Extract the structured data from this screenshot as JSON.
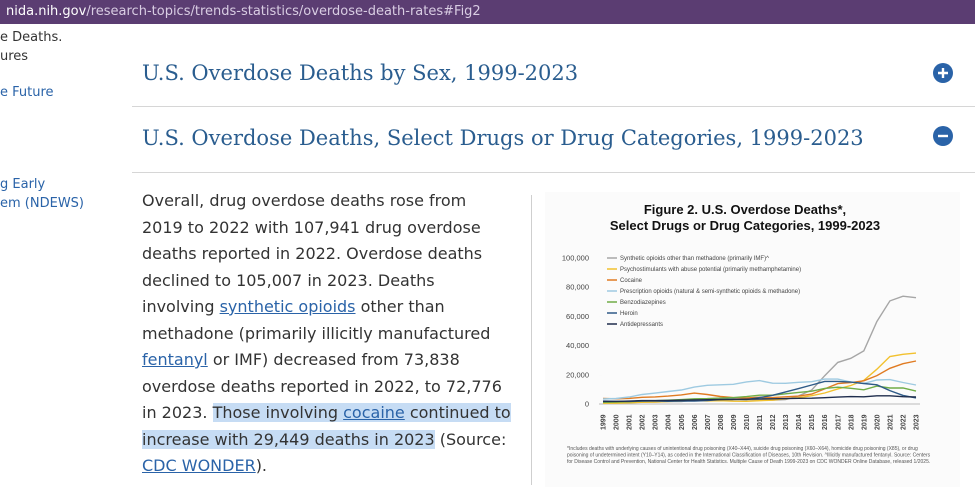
{
  "url": {
    "domain": "nida.nih.gov",
    "path": "/research-topics/trends-statistics/overdose-death-rates#Fig2"
  },
  "sidebar": [
    "e Deaths.",
    "ures",
    "e Future",
    "g Early",
    "em (NDEWS)"
  ],
  "accordion": [
    "U.S. Overdose Deaths by Sex, 1999-2023",
    "U.S. Overdose Deaths,  Select Drugs or Drug Categories, 1999-2023"
  ],
  "paragraph": [
    {
      "text": "Overall, drug overdose deaths rose from 2019 to 2022 with 107,941 drug overdose deaths reported in 2022. Overdose deaths declined to 105,007 in 2023. Deaths involving "
    },
    {
      "text": "synthetic opioids",
      "link": true
    },
    {
      "text": " other than methadone (primarily illicitly manufactured "
    },
    {
      "text": "fentanyl",
      "link": true
    },
    {
      "text": " or IMF) decreased from 73,838 overdose deaths reported in 2022, to 72,776 in 2023. "
    },
    {
      "text": "Those involving ",
      "highlight": true
    },
    {
      "text": "cocaine",
      "link": true,
      "highlight": true
    },
    {
      "text": " continued to increase with 29,449 deaths in 2023",
      "highlight": true
    },
    {
      "text": " (Source: "
    },
    {
      "text": "CDC WONDER",
      "link": true
    },
    {
      "text": ")."
    }
  ],
  "chart_data": {
    "type": "line",
    "title": "Figure 2. U.S. Overdose Deaths*,",
    "subtitle": "Select Drugs or Drug Categories, 1999-2023",
    "x": [
      1999,
      2000,
      2001,
      2002,
      2003,
      2004,
      2005,
      2006,
      2007,
      2008,
      2009,
      2010,
      2011,
      2012,
      2013,
      2014,
      2015,
      2016,
      2017,
      2018,
      2019,
      2020,
      2021,
      2022,
      2023
    ],
    "ylim": [
      0,
      100000
    ],
    "yticks": [
      0,
      {
        "value": 20000,
        "label": "20,000"
      },
      {
        "value": 40000,
        "label": "40,000"
      },
      {
        "value": 60000,
        "label": "60,000"
      },
      {
        "value": 80000,
        "label": "80,000"
      },
      {
        "value": 100000,
        "label": "100,000"
      }
    ],
    "series": [
      {
        "name": "Synthetic opioids other than methadone (primarily IMF)^",
        "color": "#a6a6a6",
        "values": [
          730,
          782,
          957,
          1295,
          1400,
          1664,
          1742,
          2707,
          2213,
          2306,
          2946,
          3007,
          2666,
          2628,
          3105,
          5544,
          9580,
          19413,
          28466,
          31335,
          36359,
          56516,
          70601,
          73838,
          72776
        ]
      },
      {
        "name": "Psychostimulants with abuse potential (primarily methamphetamine)",
        "color": "#f2c12e",
        "values": [
          547,
          578,
          805,
          1169,
          1313,
          1713,
          2125,
          2299,
          2103,
          2273,
          1951,
          1854,
          2266,
          2635,
          3627,
          4298,
          5716,
          7542,
          10333,
          12676,
          16167,
          23837,
          32537,
          34022,
          34855
        ]
      },
      {
        "name": "Cocaine",
        "color": "#e07b22",
        "values": [
          3822,
          3544,
          3833,
          4599,
          4883,
          5443,
          6208,
          7448,
          6512,
          5129,
          4350,
          4183,
          4681,
          4404,
          4944,
          5415,
          6784,
          10375,
          13942,
          14666,
          15883,
          19447,
          24486,
          27569,
          29449
        ]
      },
      {
        "name": "Prescription opioids (natural & semi-synthetic opioids & methadone)",
        "color": "#9ecae1",
        "values": [
          3442,
          3785,
          4770,
          6483,
          7456,
          8577,
          9612,
          11589,
          12796,
          13149,
          13523,
          15140,
          16007,
          14240,
          14145,
          14838,
          15281,
          17087,
          17029,
          14975,
          14139,
          16416,
          16706,
          14716,
          13026
        ]
      },
      {
        "name": "Benzodiazepines",
        "color": "#70ad47",
        "values": [
          1135,
          1298,
          1594,
          2006,
          2248,
          2593,
          3043,
          3573,
          3726,
          4054,
          4390,
          5076,
          6041,
          6003,
          6973,
          7945,
          8791,
          10684,
          11537,
          10724,
          9711,
          12290,
          10964,
          10927,
          8812
        ]
      },
      {
        "name": "Heroin",
        "color": "#2e5a87",
        "values": [
          1960,
          1842,
          1779,
          2089,
          2080,
          1878,
          2009,
          2088,
          2399,
          3041,
          3278,
          3036,
          4397,
          5925,
          8257,
          10574,
          12989,
          15469,
          15482,
          14996,
          14019,
          13165,
          9173,
          5871,
          4163
        ]
      },
      {
        "name": "Antidepressants",
        "color": "#1f2d4d",
        "values": [
          1749,
          1802,
          1965,
          2358,
          2332,
          2496,
          2601,
          2806,
          2913,
          3089,
          3138,
          3291,
          3460,
          3584,
          3668,
          3892,
          4003,
          4301,
          4737,
          5064,
          4898,
          5597,
          5587,
          5000,
          4800
        ]
      }
    ],
    "footnote": "*Includes deaths with underlying causes of unintentional drug poisoning (X40–X44), suicide drug poisoning (X60–X64), homicide drug poisoning (X85), or drug poisoning of undetermined intent (Y10–Y14), as coded in the International Classification of Diseases, 10th Revision. ^Illicitly manufactured fentanyl. Source: Centers for Disease Control and Prevention, National Center for Health Statistics. Multiple Cause of Death 1999-2023 on CDC WONDER Online Database, released 1/2025."
  }
}
